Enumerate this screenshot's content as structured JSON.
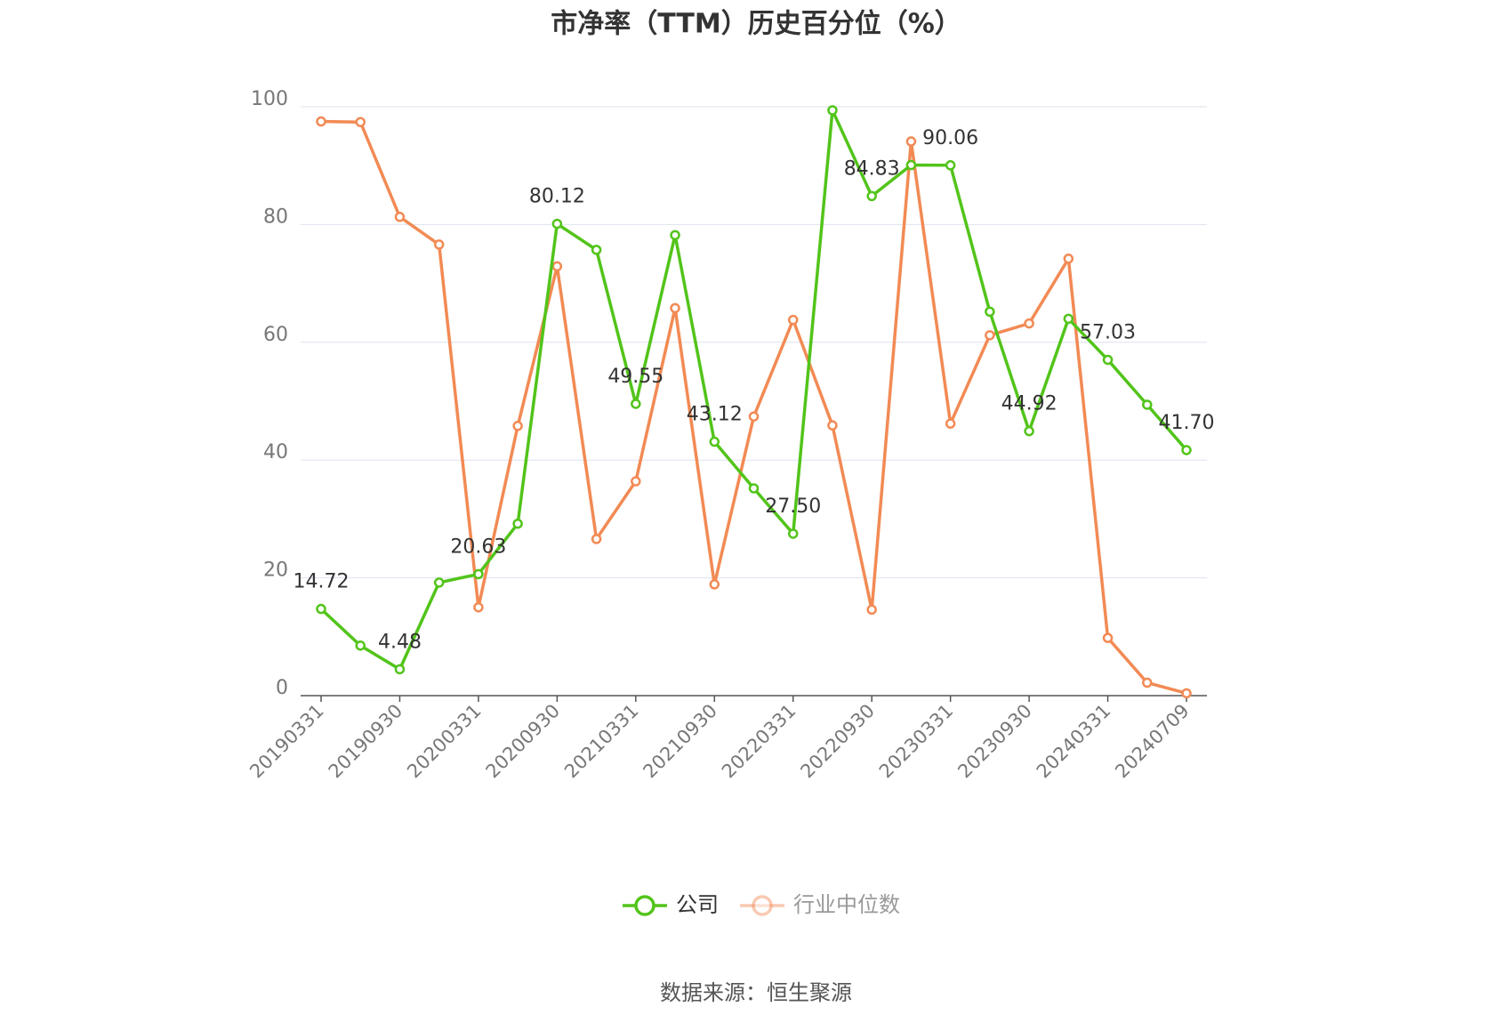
{
  "chart_data": {
    "type": "line",
    "title": "市净率（TTM）历史百分位（%）",
    "source": "数据来源：恒生聚源",
    "categories": [
      "20190331",
      null,
      "20190930",
      null,
      "20200331",
      null,
      "20200930",
      null,
      "20210331",
      null,
      "20210930",
      null,
      "20220331",
      null,
      "20220930",
      null,
      "20230331",
      null,
      "20230930",
      null,
      "20240331",
      null,
      "20240709"
    ],
    "series": [
      {
        "name": "公司",
        "color": "#52c41a",
        "values": [
          14.72,
          8.5,
          4.48,
          19.2,
          20.63,
          29.2,
          80.12,
          75.7,
          49.55,
          78.2,
          43.12,
          35.2,
          27.5,
          99.4,
          84.83,
          90.1,
          90.06,
          65.2,
          44.92,
          64.0,
          57.03,
          49.4,
          41.7
        ],
        "value_labels": [
          "14.72",
          null,
          "4.48",
          null,
          "20.63",
          null,
          "80.12",
          null,
          "49.55",
          null,
          "43.12",
          null,
          "27.50",
          null,
          "84.83",
          null,
          "90.06",
          null,
          "44.92",
          null,
          "57.03",
          null,
          "41.70"
        ]
      },
      {
        "name": "行业中位数",
        "color": "#f28a54",
        "values": [
          97.5,
          97.4,
          81.3,
          76.6,
          15.0,
          45.8,
          72.9,
          26.6,
          36.4,
          65.8,
          18.9,
          47.4,
          63.8,
          45.9,
          14.6,
          94.1,
          46.2,
          61.2,
          63.2,
          74.2,
          9.8,
          2.2,
          0.4
        ]
      }
    ],
    "ylim": [
      0,
      100
    ],
    "yticks": [
      0,
      20,
      40,
      60,
      80,
      100
    ],
    "grid": true
  }
}
